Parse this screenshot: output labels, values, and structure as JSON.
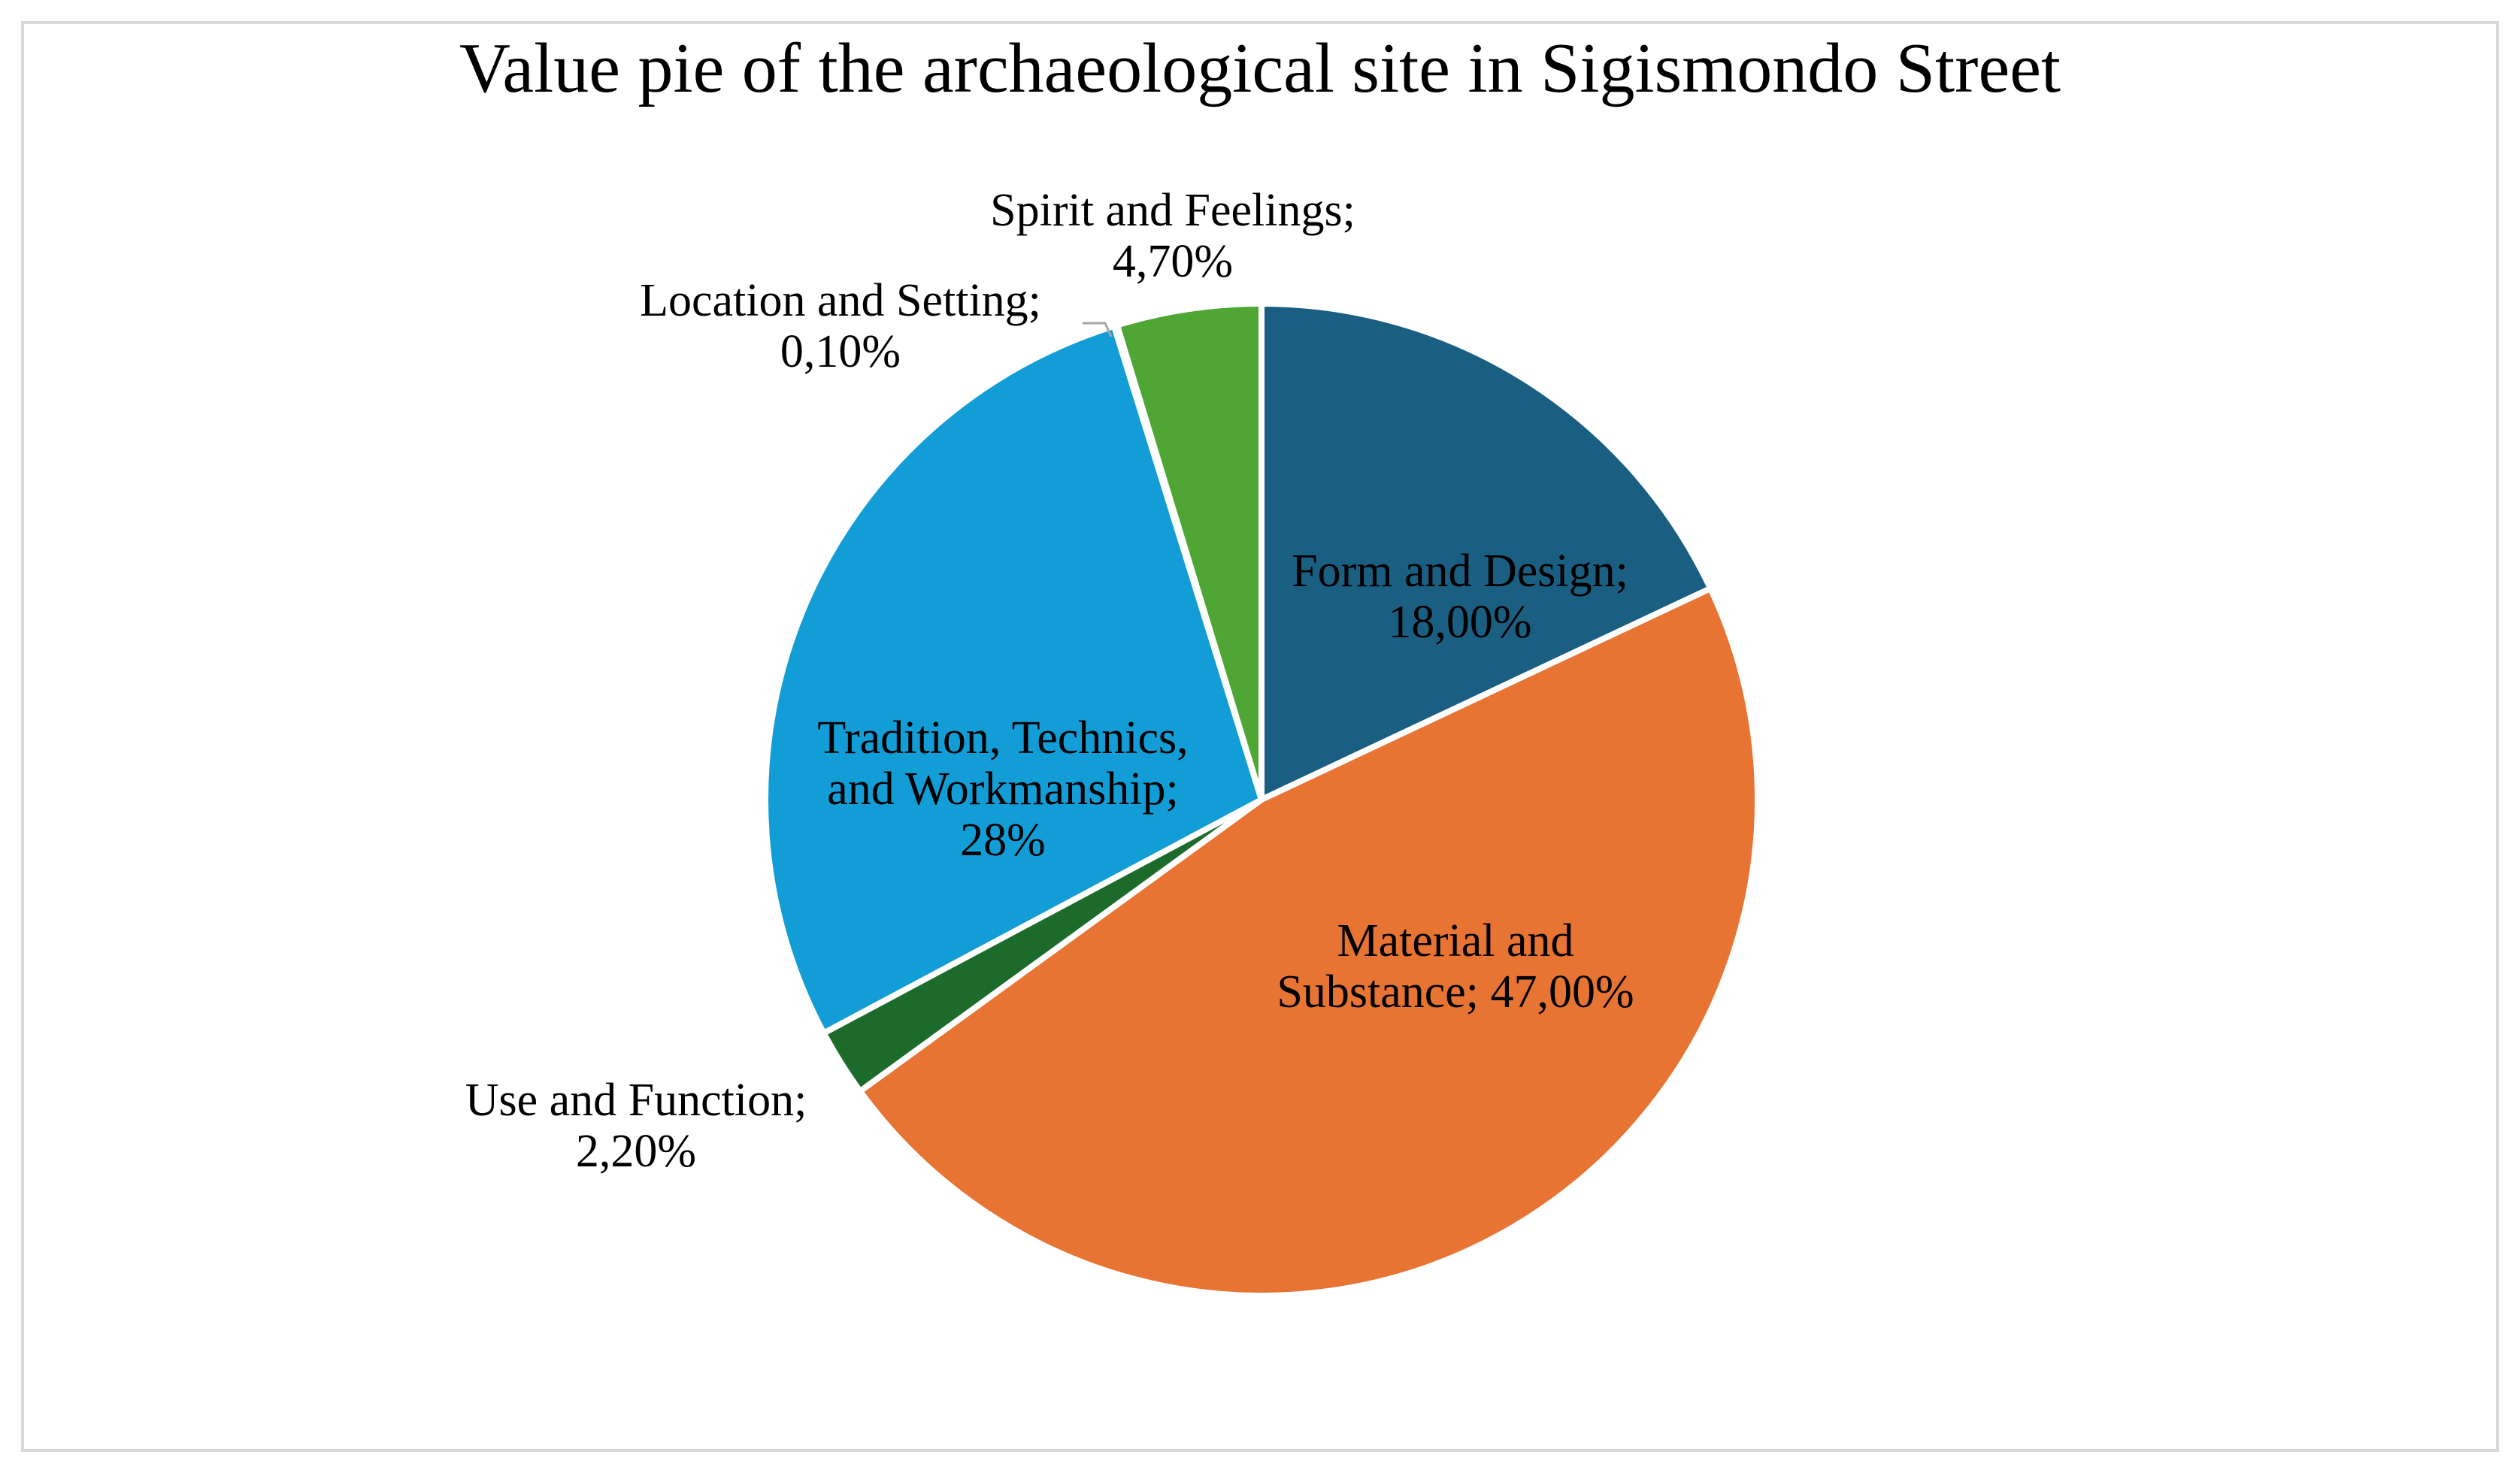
{
  "chart_data": {
    "type": "pie",
    "title": "Value pie of the archaeological site in Sigismondo Street",
    "slices": [
      {
        "name": "Form and Design",
        "value": 18.0,
        "color": "#1a5e82",
        "label_lines": [
          "Form and Design;",
          "18,00%"
        ]
      },
      {
        "name": "Material and Substance",
        "value": 47.0,
        "color": "#e87434",
        "label_lines": [
          "Material and",
          "Substance; 47,00%"
        ]
      },
      {
        "name": "Use and Function",
        "value": 2.2,
        "color": "#1c6b2a",
        "label_lines": [
          "Use and Function;",
          "2,20%"
        ]
      },
      {
        "name": "Tradition, Technics, and Workmanship",
        "value": 28.0,
        "color": "#129dd6",
        "label_lines": [
          "Tradition, Technics,",
          "and Workmanship;",
          "28%"
        ]
      },
      {
        "name": "Location and Setting",
        "value": 0.1,
        "color": "#7f7f7f",
        "label_lines": [
          "Location and Setting;",
          "0,10%"
        ]
      },
      {
        "name": "Spirit and Feelings",
        "value": 4.7,
        "color": "#4fa634",
        "label_lines": [
          "Spirit and Feelings;",
          "4,70%"
        ]
      }
    ],
    "start_angle_deg": 0,
    "direction": "clockwise",
    "legend": "none"
  }
}
